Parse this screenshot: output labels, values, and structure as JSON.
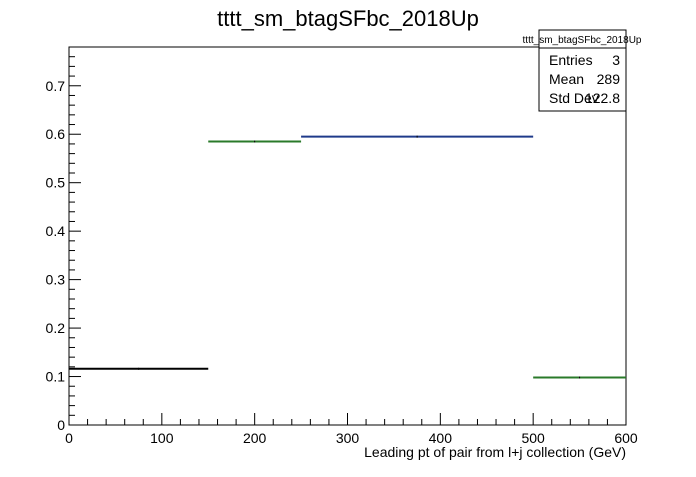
{
  "chart_data": {
    "type": "histogram",
    "title": "tttt_sm_btagSFbc_2018Up",
    "xlabel": "Leading pt of pair from l+j collection (GeV)",
    "ylabel": "",
    "xlim": [
      0,
      600
    ],
    "ylim": [
      0,
      0.78
    ],
    "x_ticks": [
      0,
      100,
      200,
      300,
      400,
      500,
      600
    ],
    "y_ticks": [
      0,
      0.1,
      0.2,
      0.3,
      0.4,
      0.5,
      0.6,
      0.7
    ],
    "grid": false,
    "bins": [
      {
        "x_low": 0,
        "x_high": 150,
        "value": 0.116,
        "color": "#000000"
      },
      {
        "x_low": 150,
        "x_high": 250,
        "value": 0.585,
        "color": "#2a7a2a"
      },
      {
        "x_low": 250,
        "x_high": 500,
        "value": 0.595,
        "color": "#1f3a8a"
      },
      {
        "x_low": 500,
        "x_high": 600,
        "value": 0.098,
        "color": "#2a7a2a"
      }
    ],
    "stats_box": {
      "title": "tttt_sm_btagSFbc_2018Up",
      "placement": "top-right",
      "rows": [
        {
          "label": "Entries",
          "value": "3"
        },
        {
          "label": "Mean",
          "value": "289"
        },
        {
          "label": "Std Dev",
          "value": "122.8"
        }
      ]
    }
  }
}
